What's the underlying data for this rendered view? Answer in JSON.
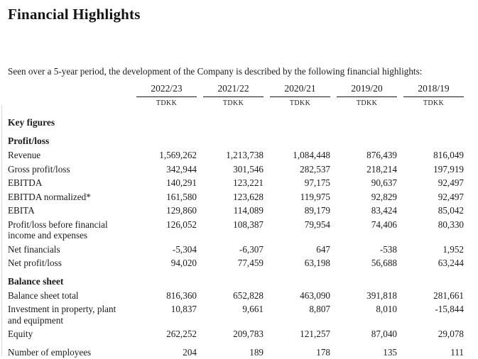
{
  "document": {
    "title": "Financial Highlights",
    "intro": "Seen over a 5-year period, the development of the Company is described by the following financial highlights:"
  },
  "table": {
    "columns": [
      "2022/23",
      "2021/22",
      "2020/21",
      "2019/20",
      "2018/19"
    ],
    "unit": "TDKK",
    "sections": [
      {
        "heading": "Key figures",
        "rows": []
      },
      {
        "heading": "Profit/loss",
        "rows": [
          {
            "label": "Revenue",
            "values": [
              "1,569,262",
              "1,213,738",
              "1,084,448",
              "876,439",
              "816,049"
            ]
          },
          {
            "label": "Gross profit/loss",
            "values": [
              "342,944",
              "301,546",
              "282,537",
              "218,214",
              "197,919"
            ]
          },
          {
            "label": "EBITDA",
            "values": [
              "140,291",
              "123,221",
              "97,175",
              "90,637",
              "92,497"
            ]
          },
          {
            "label": "EBITDA normalized*",
            "values": [
              "161,580",
              "123,628",
              "119,975",
              "92,829",
              "92,497"
            ]
          },
          {
            "label": "EBITA",
            "values": [
              "129,860",
              "114,089",
              "89,179",
              "83,424",
              "85,042"
            ]
          },
          {
            "label": "Profit/loss before financial income and expenses",
            "values": [
              "126,052",
              "108,387",
              "79,954",
              "74,406",
              "80,330"
            ]
          },
          {
            "label": "Net financials",
            "values": [
              "-5,304",
              "-6,307",
              "647",
              "-538",
              "1,952"
            ]
          },
          {
            "label": "Net profit/loss",
            "values": [
              "94,020",
              "77,459",
              "63,198",
              "56,688",
              "63,244"
            ]
          }
        ]
      },
      {
        "heading": "Balance sheet",
        "rows": [
          {
            "label": "Balance sheet total",
            "values": [
              "816,360",
              "652,828",
              "463,090",
              "391,818",
              "281,661"
            ]
          },
          {
            "label": "Investment in property, plant and equipment",
            "values": [
              "10,837",
              "9,661",
              "8,807",
              "8,010",
              "-15,844"
            ]
          },
          {
            "label": "Equity",
            "values": [
              "262,252",
              "209,783",
              "121,257",
              "87,040",
              "29,078"
            ]
          }
        ]
      },
      {
        "heading": "",
        "rows": [
          {
            "label": "Number of employees",
            "values": [
              "204",
              "189",
              "178",
              "135",
              "111"
            ],
            "gap_before": true
          }
        ]
      }
    ]
  }
}
